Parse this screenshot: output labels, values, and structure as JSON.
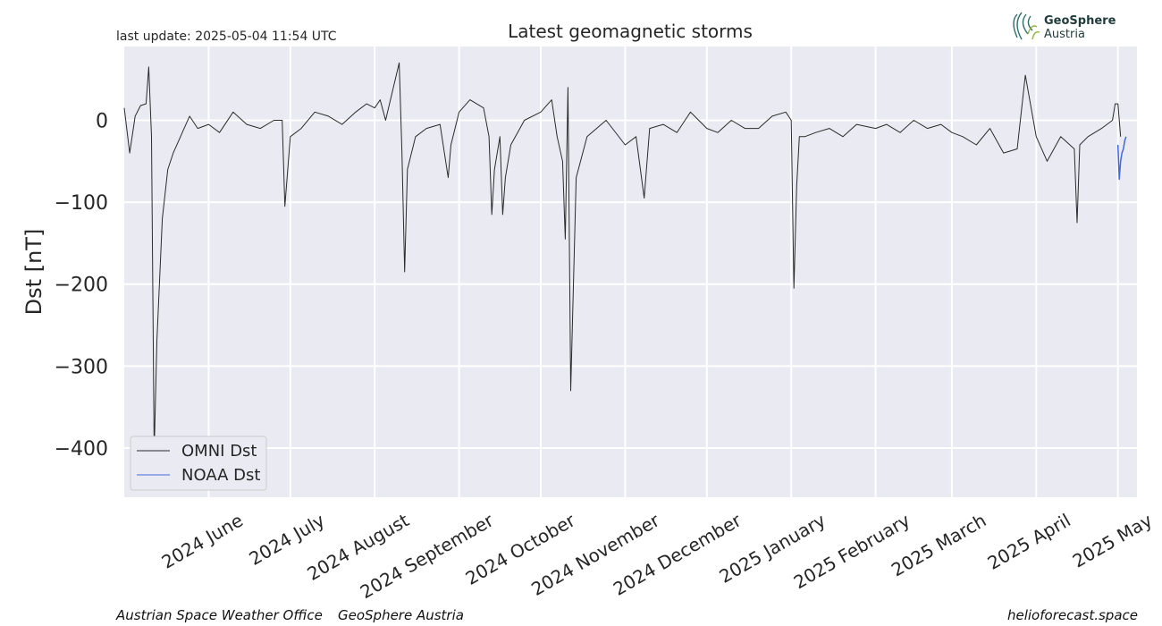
{
  "header": {
    "last_update": "last update: 2025-05-04 11:54 UTC",
    "logo_line1": "GeoSphere",
    "logo_line2": "Austria"
  },
  "footer": {
    "left1": "Austrian Space Weather Office",
    "left2": "GeoSphere Austria",
    "right": "helioforecast.space"
  },
  "colors": {
    "background": "#eaeaf2",
    "grid": "#ffffff",
    "omni": "#2b2b2b",
    "noaa": "#4169e1"
  },
  "chart_data": {
    "type": "line",
    "title": "Latest geomagnetic storms",
    "ylabel": "Dst [nT]",
    "xlabel": "",
    "ylim": [
      -460,
      90
    ],
    "xlim": [
      "2024-05-01",
      "2025-05-08"
    ],
    "yticks": [
      0,
      -100,
      -200,
      -300,
      -400
    ],
    "ytick_labels": [
      "0",
      "−100",
      "−200",
      "−300",
      "−400"
    ],
    "xticks": [
      "2024-06-01",
      "2024-07-01",
      "2024-08-01",
      "2024-09-01",
      "2024-10-01",
      "2024-11-01",
      "2024-12-01",
      "2025-01-01",
      "2025-02-01",
      "2025-03-01",
      "2025-04-01",
      "2025-05-01"
    ],
    "xtick_labels": [
      "2024 June",
      "2024 July",
      "2024 August",
      "2024 September",
      "2024 October",
      "2024 November",
      "2024 December",
      "2025 January",
      "2025 February",
      "2025 March",
      "2025 April",
      "2025 May"
    ],
    "grid": true,
    "legend_position": "lower-left",
    "series": [
      {
        "name": "OMNI Dst",
        "color": "#2b2b2b",
        "x": [
          "2024-05-01",
          "2024-05-03",
          "2024-05-05",
          "2024-05-07",
          "2024-05-09",
          "2024-05-10",
          "2024-05-11",
          "2024-05-12",
          "2024-05-13",
          "2024-05-15",
          "2024-05-17",
          "2024-05-19",
          "2024-05-21",
          "2024-05-23",
          "2024-05-25",
          "2024-05-28",
          "2024-06-01",
          "2024-06-05",
          "2024-06-10",
          "2024-06-15",
          "2024-06-20",
          "2024-06-25",
          "2024-06-28",
          "2024-06-29",
          "2024-07-01",
          "2024-07-05",
          "2024-07-10",
          "2024-07-15",
          "2024-07-20",
          "2024-07-25",
          "2024-07-29",
          "2024-08-01",
          "2024-08-03",
          "2024-08-05",
          "2024-08-10",
          "2024-08-11",
          "2024-08-12",
          "2024-08-13",
          "2024-08-16",
          "2024-08-20",
          "2024-08-25",
          "2024-08-28",
          "2024-08-29",
          "2024-09-01",
          "2024-09-05",
          "2024-09-10",
          "2024-09-12",
          "2024-09-13",
          "2024-09-14",
          "2024-09-16",
          "2024-09-17",
          "2024-09-18",
          "2024-09-20",
          "2024-09-25",
          "2024-10-01",
          "2024-10-05",
          "2024-10-07",
          "2024-10-09",
          "2024-10-10",
          "2024-10-11",
          "2024-10-12",
          "2024-10-14",
          "2024-10-18",
          "2024-10-25",
          "2024-11-01",
          "2024-11-05",
          "2024-11-08",
          "2024-11-10",
          "2024-11-15",
          "2024-11-20",
          "2024-11-25",
          "2024-12-01",
          "2024-12-05",
          "2024-12-10",
          "2024-12-15",
          "2024-12-20",
          "2024-12-25",
          "2024-12-30",
          "2025-01-01",
          "2025-01-02",
          "2025-01-03",
          "2025-01-04",
          "2025-01-06",
          "2025-01-10",
          "2025-01-15",
          "2025-01-20",
          "2025-01-25",
          "2025-02-01",
          "2025-02-05",
          "2025-02-10",
          "2025-02-15",
          "2025-02-20",
          "2025-02-25",
          "2025-03-01",
          "2025-03-05",
          "2025-03-10",
          "2025-03-15",
          "2025-03-20",
          "2025-03-25",
          "2025-03-28",
          "2025-04-01",
          "2025-04-05",
          "2025-04-10",
          "2025-04-15",
          "2025-04-16",
          "2025-04-17",
          "2025-04-20",
          "2025-04-25",
          "2025-04-29",
          "2025-04-30",
          "2025-05-01",
          "2025-05-02"
        ],
        "values": [
          15,
          -40,
          5,
          18,
          20,
          65,
          -20,
          -405,
          -270,
          -120,
          -60,
          -40,
          -25,
          -10,
          5,
          -10,
          -5,
          -15,
          10,
          -5,
          -10,
          0,
          0,
          -105,
          -20,
          -10,
          10,
          5,
          -5,
          10,
          20,
          15,
          25,
          0,
          70,
          -40,
          -185,
          -60,
          -20,
          -10,
          -5,
          -70,
          -30,
          10,
          25,
          15,
          -20,
          -115,
          -60,
          -20,
          -115,
          -70,
          -30,
          0,
          10,
          25,
          -20,
          -50,
          -145,
          40,
          -330,
          -70,
          -20,
          0,
          -30,
          -20,
          -95,
          -10,
          -5,
          -15,
          10,
          -10,
          -15,
          0,
          -10,
          -10,
          5,
          10,
          0,
          -205,
          -80,
          -20,
          -20,
          -15,
          -10,
          -20,
          -5,
          -10,
          -5,
          -15,
          0,
          -10,
          -5,
          -15,
          -20,
          -30,
          -10,
          -40,
          -35,
          55,
          -20,
          -50,
          -20,
          -35,
          -125,
          -30,
          -20,
          -10,
          0,
          20,
          20,
          -20
        ]
      },
      {
        "name": "NOAA Dst",
        "color": "#4169e1",
        "x": [
          "2025-05-01",
          "2025-05-01T12",
          "2025-05-02",
          "2025-05-02T12",
          "2025-05-03",
          "2025-05-03T12",
          "2025-05-04"
        ],
        "values": [
          -30,
          -72,
          -50,
          -40,
          -35,
          -25,
          -20
        ]
      }
    ]
  }
}
